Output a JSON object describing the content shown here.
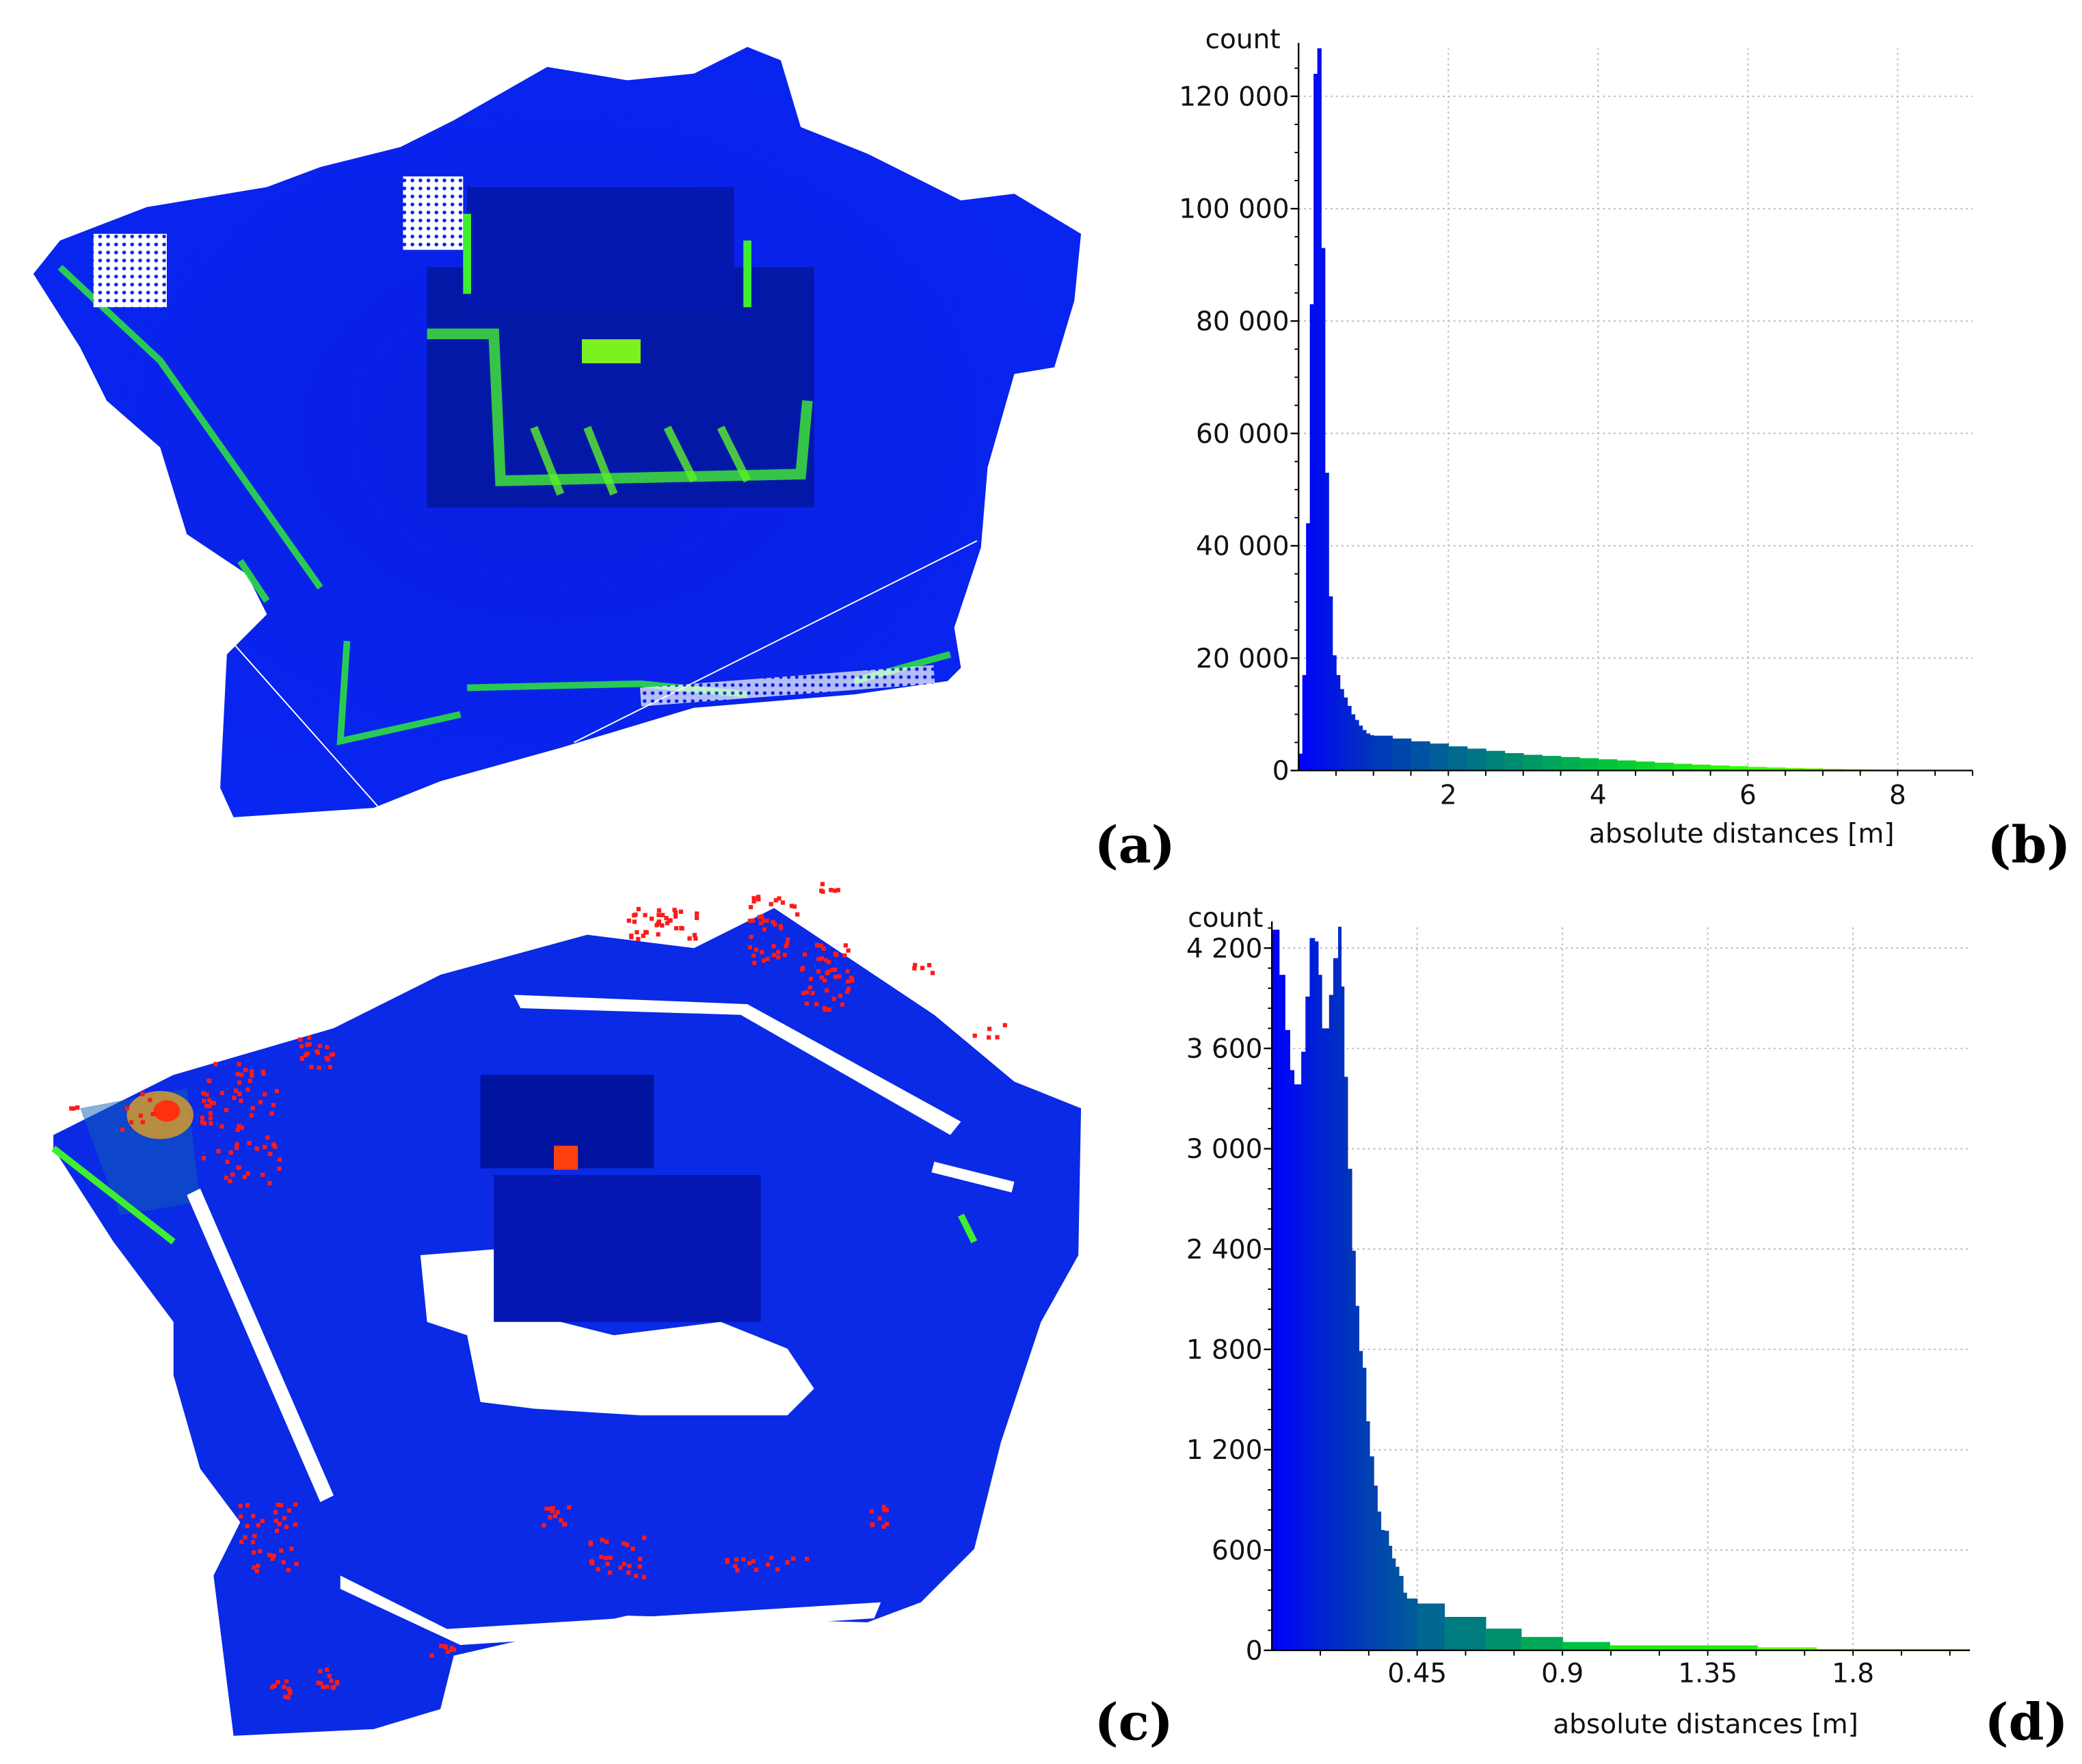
{
  "panels": {
    "a": {
      "label": "(a)"
    },
    "b": {
      "label": "(b)"
    },
    "c": {
      "label": "(c)"
    },
    "d": {
      "label": "(d)"
    }
  },
  "colors": {
    "cloud_blue": "#0a22e6",
    "cloud_dark": "#0619b8",
    "cloud_green": "#33ee22",
    "outlier_red": "#ff1a1a",
    "scale_stops": [
      "#0000ff",
      "#0030c0",
      "#00708a",
      "#00c040",
      "#33ff00",
      "#ffff00"
    ]
  },
  "chart_data": [
    {
      "type": "bar",
      "panel": "b",
      "title": "",
      "ylabel": "count",
      "xlabel": "absolute distances [m]",
      "xlim": [
        0,
        9
      ],
      "ylim": [
        0,
        130000
      ],
      "grid": true,
      "x_ticks": [
        2,
        4,
        6,
        8
      ],
      "x_tick_labels": [
        "2",
        "4",
        "6",
        "8"
      ],
      "y_ticks": [
        0,
        20000,
        40000,
        60000,
        80000,
        100000,
        120000
      ],
      "y_tick_labels": [
        "0",
        "20 000",
        "40 000",
        "60 000",
        "80 000",
        "100 000",
        "120 000"
      ],
      "bins": [
        [
          0,
          0.05,
          3000
        ],
        [
          0.05,
          0.1,
          17000
        ],
        [
          0.1,
          0.15,
          44000
        ],
        [
          0.15,
          0.2,
          83000
        ],
        [
          0.2,
          0.25,
          124000
        ],
        [
          0.25,
          0.3,
          130000
        ],
        [
          0.3,
          0.35,
          93000
        ],
        [
          0.35,
          0.4,
          53000
        ],
        [
          0.4,
          0.45,
          31000
        ],
        [
          0.45,
          0.5,
          20500
        ],
        [
          0.5,
          0.55,
          17000
        ],
        [
          0.55,
          0.6,
          14500
        ],
        [
          0.6,
          0.65,
          13000
        ],
        [
          0.65,
          0.7,
          11500
        ],
        [
          0.7,
          0.75,
          10000
        ],
        [
          0.75,
          0.8,
          9000
        ],
        [
          0.8,
          0.85,
          8000
        ],
        [
          0.85,
          0.9,
          7200
        ],
        [
          0.9,
          0.95,
          6600
        ],
        [
          0.95,
          1.0,
          6300
        ],
        [
          1.0,
          1.25,
          6200
        ],
        [
          1.25,
          1.5,
          5700
        ],
        [
          1.5,
          1.75,
          5200
        ],
        [
          1.75,
          2.0,
          4800
        ],
        [
          2.0,
          2.25,
          4300
        ],
        [
          2.25,
          2.5,
          3900
        ],
        [
          2.5,
          2.75,
          3500
        ],
        [
          2.75,
          3.0,
          3100
        ],
        [
          3.0,
          3.25,
          2800
        ],
        [
          3.25,
          3.5,
          2600
        ],
        [
          3.5,
          3.75,
          2400
        ],
        [
          3.75,
          4.0,
          2200
        ],
        [
          4.0,
          4.25,
          2000
        ],
        [
          4.25,
          4.5,
          1800
        ],
        [
          4.5,
          4.75,
          1600
        ],
        [
          4.75,
          5.0,
          1400
        ],
        [
          5.0,
          5.25,
          1200
        ],
        [
          5.25,
          5.5,
          1050
        ],
        [
          5.5,
          5.75,
          900
        ],
        [
          5.75,
          6.0,
          780
        ],
        [
          6.0,
          6.25,
          650
        ],
        [
          6.25,
          6.5,
          550
        ],
        [
          6.5,
          6.75,
          450
        ],
        [
          6.75,
          7.0,
          380
        ],
        [
          7.0,
          7.25,
          300
        ],
        [
          7.25,
          7.5,
          250
        ],
        [
          7.5,
          7.75,
          200
        ],
        [
          7.75,
          8.0,
          160
        ],
        [
          8.0,
          8.25,
          120
        ],
        [
          8.25,
          8.5,
          90
        ],
        [
          8.5,
          8.75,
          60
        ],
        [
          8.75,
          9.0,
          30
        ]
      ]
    },
    {
      "type": "bar",
      "panel": "d",
      "title": "",
      "ylabel": "count",
      "xlabel": "absolute distances [m]",
      "xlim": [
        0,
        2.162
      ],
      "ylim": [
        0,
        4400
      ],
      "grid": true,
      "x_ticks": [
        0.45,
        0.9,
        1.35,
        1.8
      ],
      "x_tick_labels": [
        "0.45",
        "0.9",
        "1.35",
        "1.8"
      ],
      "y_ticks": [
        0,
        600,
        1200,
        1800,
        2400,
        3000,
        3600,
        4200
      ],
      "y_tick_labels": [
        "0",
        "600",
        "1 200",
        "1 800",
        "2 400",
        "3 000",
        "3 600",
        "4 200"
      ],
      "bins": [
        [
          0,
          0.022,
          4310
        ],
        [
          0.022,
          0.04,
          4040
        ],
        [
          0.04,
          0.055,
          3710
        ],
        [
          0.055,
          0.068,
          3470
        ],
        [
          0.068,
          0.091,
          3385
        ],
        [
          0.091,
          0.104,
          3580
        ],
        [
          0.104,
          0.117,
          3910
        ],
        [
          0.117,
          0.132,
          4260
        ],
        [
          0.132,
          0.143,
          4240
        ],
        [
          0.143,
          0.154,
          4040
        ],
        [
          0.154,
          0.177,
          3720
        ],
        [
          0.177,
          0.19,
          3920
        ],
        [
          0.19,
          0.205,
          4140
        ],
        [
          0.205,
          0.214,
          4350
        ],
        [
          0.214,
          0.223,
          3970
        ],
        [
          0.223,
          0.234,
          3430
        ],
        [
          0.234,
          0.247,
          2880
        ],
        [
          0.247,
          0.258,
          2390
        ],
        [
          0.258,
          0.269,
          2060
        ],
        [
          0.269,
          0.28,
          1790
        ],
        [
          0.28,
          0.291,
          1690
        ],
        [
          0.291,
          0.302,
          1370
        ],
        [
          0.302,
          0.315,
          1160
        ],
        [
          0.315,
          0.326,
          985
        ],
        [
          0.326,
          0.337,
          830
        ],
        [
          0.337,
          0.348,
          720
        ],
        [
          0.348,
          0.361,
          715
        ],
        [
          0.361,
          0.371,
          625
        ],
        [
          0.371,
          0.382,
          550
        ],
        [
          0.382,
          0.393,
          500
        ],
        [
          0.393,
          0.406,
          445
        ],
        [
          0.406,
          0.417,
          345
        ],
        [
          0.417,
          0.45,
          310
        ],
        [
          0.45,
          0.534,
          280
        ],
        [
          0.534,
          0.662,
          200
        ],
        [
          0.662,
          0.772,
          130
        ],
        [
          0.772,
          0.9,
          80
        ],
        [
          0.9,
          1.046,
          50
        ],
        [
          1.046,
          1.503,
          30
        ],
        [
          1.503,
          1.686,
          18
        ],
        [
          1.686,
          2.162,
          8
        ]
      ]
    }
  ]
}
